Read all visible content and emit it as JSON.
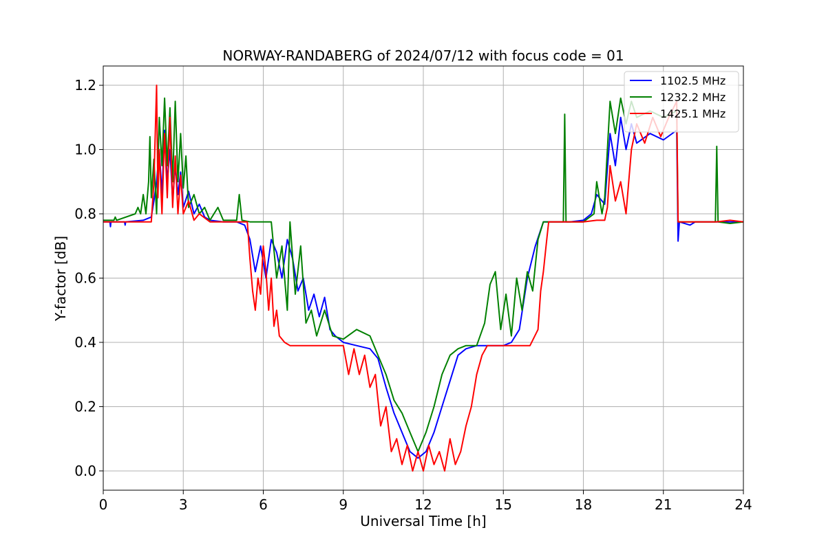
{
  "chart_data": {
    "type": "line",
    "title": "NORWAY-RANDABERG of 2024/07/12 with focus code = 01",
    "xlabel": "Universal Time [h]",
    "ylabel": "Y-factor [dB]",
    "xlim": [
      0,
      24
    ],
    "ylim": [
      -0.06,
      1.26
    ],
    "xticks": [
      0,
      3,
      6,
      9,
      12,
      15,
      18,
      21,
      24
    ],
    "xtick_labels": [
      "0",
      "3",
      "6",
      "9",
      "12",
      "15",
      "18",
      "21",
      "24"
    ],
    "yticks": [
      0.0,
      0.2,
      0.4,
      0.6,
      0.8,
      1.0,
      1.2
    ],
    "ytick_labels": [
      "0.0",
      "0.2",
      "0.4",
      "0.6",
      "0.8",
      "1.0",
      "1.2"
    ],
    "grid": true,
    "legend_position": "top-right",
    "series": [
      {
        "name": "1102.5 MHz",
        "color": "#0000ff",
        "points": [
          [
            0.0,
            0.775
          ],
          [
            0.25,
            0.775
          ],
          [
            0.27,
            0.76
          ],
          [
            0.29,
            0.775
          ],
          [
            0.8,
            0.775
          ],
          [
            0.82,
            0.765
          ],
          [
            0.84,
            0.775
          ],
          [
            1.5,
            0.78
          ],
          [
            1.8,
            0.79
          ],
          [
            1.9,
            0.84
          ],
          [
            2.0,
            0.9
          ],
          [
            2.1,
            1.0
          ],
          [
            2.2,
            0.86
          ],
          [
            2.3,
            1.06
          ],
          [
            2.4,
            0.9
          ],
          [
            2.5,
            1.0
          ],
          [
            2.6,
            0.84
          ],
          [
            2.7,
            0.95
          ],
          [
            2.8,
            0.86
          ],
          [
            2.9,
            0.93
          ],
          [
            3.0,
            0.82
          ],
          [
            3.2,
            0.87
          ],
          [
            3.4,
            0.8
          ],
          [
            3.6,
            0.83
          ],
          [
            3.8,
            0.79
          ],
          [
            4.0,
            0.78
          ],
          [
            4.5,
            0.775
          ],
          [
            5.0,
            0.775
          ],
          [
            5.3,
            0.765
          ],
          [
            5.5,
            0.72
          ],
          [
            5.7,
            0.62
          ],
          [
            5.9,
            0.7
          ],
          [
            6.1,
            0.6
          ],
          [
            6.3,
            0.72
          ],
          [
            6.5,
            0.68
          ],
          [
            6.7,
            0.6
          ],
          [
            6.9,
            0.72
          ],
          [
            7.1,
            0.66
          ],
          [
            7.3,
            0.56
          ],
          [
            7.5,
            0.6
          ],
          [
            7.7,
            0.5
          ],
          [
            7.9,
            0.55
          ],
          [
            8.1,
            0.48
          ],
          [
            8.3,
            0.54
          ],
          [
            8.5,
            0.44
          ],
          [
            8.7,
            0.42
          ],
          [
            9.0,
            0.4
          ],
          [
            9.5,
            0.39
          ],
          [
            10.0,
            0.38
          ],
          [
            10.3,
            0.35
          ],
          [
            10.6,
            0.26
          ],
          [
            10.9,
            0.18
          ],
          [
            11.2,
            0.12
          ],
          [
            11.5,
            0.06
          ],
          [
            11.8,
            0.04
          ],
          [
            12.1,
            0.06
          ],
          [
            12.4,
            0.12
          ],
          [
            12.7,
            0.2
          ],
          [
            13.0,
            0.28
          ],
          [
            13.3,
            0.36
          ],
          [
            13.6,
            0.38
          ],
          [
            14.0,
            0.39
          ],
          [
            14.5,
            0.39
          ],
          [
            15.0,
            0.39
          ],
          [
            15.3,
            0.4
          ],
          [
            15.6,
            0.44
          ],
          [
            15.9,
            0.6
          ],
          [
            16.2,
            0.7
          ],
          [
            16.5,
            0.775
          ],
          [
            17.0,
            0.775
          ],
          [
            17.5,
            0.775
          ],
          [
            18.0,
            0.78
          ],
          [
            18.3,
            0.8
          ],
          [
            18.5,
            0.86
          ],
          [
            18.8,
            0.83
          ],
          [
            19.0,
            1.05
          ],
          [
            19.2,
            0.95
          ],
          [
            19.4,
            1.1
          ],
          [
            19.6,
            1.0
          ],
          [
            19.8,
            1.08
          ],
          [
            20.0,
            1.02
          ],
          [
            20.5,
            1.05
          ],
          [
            21.0,
            1.03
          ],
          [
            21.5,
            1.06
          ],
          [
            21.55,
            0.715
          ],
          [
            21.6,
            0.775
          ],
          [
            22.0,
            0.765
          ],
          [
            22.2,
            0.775
          ],
          [
            23.0,
            0.775
          ],
          [
            24.0,
            0.775
          ]
        ]
      },
      {
        "name": "1232.2 MHz",
        "color": "#008000",
        "points": [
          [
            0.0,
            0.78
          ],
          [
            0.4,
            0.78
          ],
          [
            0.45,
            0.79
          ],
          [
            0.5,
            0.78
          ],
          [
            1.2,
            0.8
          ],
          [
            1.3,
            0.82
          ],
          [
            1.4,
            0.8
          ],
          [
            1.5,
            0.86
          ],
          [
            1.6,
            0.8
          ],
          [
            1.7,
            0.9
          ],
          [
            1.75,
            1.04
          ],
          [
            1.8,
            0.85
          ],
          [
            1.9,
            0.97
          ],
          [
            2.0,
            0.8
          ],
          [
            2.1,
            1.1
          ],
          [
            2.2,
            0.95
          ],
          [
            2.3,
            1.16
          ],
          [
            2.4,
            0.95
          ],
          [
            2.5,
            1.13
          ],
          [
            2.6,
            0.9
          ],
          [
            2.7,
            1.15
          ],
          [
            2.8,
            0.9
          ],
          [
            2.9,
            1.05
          ],
          [
            3.0,
            0.88
          ],
          [
            3.1,
            0.98
          ],
          [
            3.2,
            0.82
          ],
          [
            3.4,
            0.86
          ],
          [
            3.6,
            0.8
          ],
          [
            3.8,
            0.82
          ],
          [
            4.0,
            0.78
          ],
          [
            4.3,
            0.82
          ],
          [
            4.5,
            0.78
          ],
          [
            5.0,
            0.78
          ],
          [
            5.1,
            0.86
          ],
          [
            5.2,
            0.78
          ],
          [
            5.5,
            0.775
          ],
          [
            6.0,
            0.775
          ],
          [
            6.3,
            0.775
          ],
          [
            6.5,
            0.6
          ],
          [
            6.7,
            0.7
          ],
          [
            6.9,
            0.5
          ],
          [
            7.0,
            0.775
          ],
          [
            7.2,
            0.55
          ],
          [
            7.4,
            0.7
          ],
          [
            7.6,
            0.46
          ],
          [
            7.8,
            0.5
          ],
          [
            8.0,
            0.42
          ],
          [
            8.3,
            0.5
          ],
          [
            8.6,
            0.42
          ],
          [
            9.0,
            0.41
          ],
          [
            9.5,
            0.44
          ],
          [
            10.0,
            0.42
          ],
          [
            10.3,
            0.36
          ],
          [
            10.6,
            0.3
          ],
          [
            10.9,
            0.22
          ],
          [
            11.2,
            0.18
          ],
          [
            11.5,
            0.12
          ],
          [
            11.8,
            0.06
          ],
          [
            12.1,
            0.12
          ],
          [
            12.4,
            0.2
          ],
          [
            12.7,
            0.3
          ],
          [
            13.0,
            0.36
          ],
          [
            13.3,
            0.38
          ],
          [
            13.6,
            0.39
          ],
          [
            14.0,
            0.39
          ],
          [
            14.3,
            0.46
          ],
          [
            14.5,
            0.58
          ],
          [
            14.7,
            0.62
          ],
          [
            14.9,
            0.44
          ],
          [
            15.1,
            0.55
          ],
          [
            15.3,
            0.42
          ],
          [
            15.5,
            0.6
          ],
          [
            15.7,
            0.5
          ],
          [
            15.9,
            0.62
          ],
          [
            16.1,
            0.56
          ],
          [
            16.3,
            0.72
          ],
          [
            16.5,
            0.775
          ],
          [
            17.0,
            0.775
          ],
          [
            17.25,
            0.775
          ],
          [
            17.3,
            1.11
          ],
          [
            17.35,
            0.775
          ],
          [
            18.0,
            0.775
          ],
          [
            18.4,
            0.8
          ],
          [
            18.5,
            0.9
          ],
          [
            18.7,
            0.8
          ],
          [
            18.8,
            0.85
          ],
          [
            18.9,
            1.0
          ],
          [
            19.0,
            1.15
          ],
          [
            19.2,
            1.05
          ],
          [
            19.4,
            1.16
          ],
          [
            19.6,
            1.08
          ],
          [
            19.8,
            1.15
          ],
          [
            20.0,
            1.1
          ],
          [
            20.5,
            1.12
          ],
          [
            21.0,
            1.1
          ],
          [
            21.5,
            1.12
          ],
          [
            21.55,
            0.775
          ],
          [
            22.0,
            0.775
          ],
          [
            22.95,
            0.775
          ],
          [
            23.0,
            1.01
          ],
          [
            23.05,
            0.775
          ],
          [
            23.5,
            0.77
          ],
          [
            24.0,
            0.775
          ]
        ]
      },
      {
        "name": "1425.1 MHz",
        "color": "#ff0000",
        "points": [
          [
            0.0,
            0.775
          ],
          [
            1.5,
            0.775
          ],
          [
            1.8,
            0.775
          ],
          [
            1.9,
            0.9
          ],
          [
            2.0,
            1.2
          ],
          [
            2.05,
            0.85
          ],
          [
            2.1,
            1.0
          ],
          [
            2.2,
            0.8
          ],
          [
            2.3,
            1.05
          ],
          [
            2.4,
            0.85
          ],
          [
            2.5,
            1.1
          ],
          [
            2.6,
            0.82
          ],
          [
            2.7,
            0.98
          ],
          [
            2.8,
            0.8
          ],
          [
            2.9,
            0.92
          ],
          [
            3.0,
            0.8
          ],
          [
            3.2,
            0.84
          ],
          [
            3.4,
            0.78
          ],
          [
            3.6,
            0.8
          ],
          [
            4.0,
            0.775
          ],
          [
            5.0,
            0.775
          ],
          [
            5.4,
            0.775
          ],
          [
            5.5,
            0.66
          ],
          [
            5.6,
            0.56
          ],
          [
            5.7,
            0.5
          ],
          [
            5.8,
            0.6
          ],
          [
            5.9,
            0.55
          ],
          [
            6.0,
            0.7
          ],
          [
            6.1,
            0.62
          ],
          [
            6.2,
            0.5
          ],
          [
            6.3,
            0.6
          ],
          [
            6.4,
            0.45
          ],
          [
            6.5,
            0.5
          ],
          [
            6.6,
            0.42
          ],
          [
            6.8,
            0.4
          ],
          [
            7.0,
            0.39
          ],
          [
            7.5,
            0.39
          ],
          [
            8.0,
            0.39
          ],
          [
            8.5,
            0.39
          ],
          [
            9.0,
            0.39
          ],
          [
            9.2,
            0.3
          ],
          [
            9.4,
            0.38
          ],
          [
            9.6,
            0.3
          ],
          [
            9.8,
            0.36
          ],
          [
            10.0,
            0.26
          ],
          [
            10.2,
            0.3
          ],
          [
            10.4,
            0.14
          ],
          [
            10.6,
            0.2
          ],
          [
            10.8,
            0.06
          ],
          [
            11.0,
            0.1
          ],
          [
            11.2,
            0.02
          ],
          [
            11.4,
            0.08
          ],
          [
            11.6,
            0.0
          ],
          [
            11.8,
            0.06
          ],
          [
            12.0,
            0.0
          ],
          [
            12.2,
            0.08
          ],
          [
            12.4,
            0.02
          ],
          [
            12.6,
            0.06
          ],
          [
            12.8,
            0.0
          ],
          [
            13.0,
            0.1
          ],
          [
            13.2,
            0.02
          ],
          [
            13.4,
            0.06
          ],
          [
            13.6,
            0.14
          ],
          [
            13.8,
            0.2
          ],
          [
            14.0,
            0.3
          ],
          [
            14.2,
            0.36
          ],
          [
            14.4,
            0.39
          ],
          [
            15.0,
            0.39
          ],
          [
            15.5,
            0.39
          ],
          [
            16.0,
            0.39
          ],
          [
            16.3,
            0.44
          ],
          [
            16.4,
            0.56
          ],
          [
            16.5,
            0.62
          ],
          [
            16.6,
            0.7
          ],
          [
            16.7,
            0.775
          ],
          [
            17.0,
            0.775
          ],
          [
            17.5,
            0.775
          ],
          [
            18.0,
            0.775
          ],
          [
            18.5,
            0.78
          ],
          [
            18.8,
            0.78
          ],
          [
            18.9,
            0.82
          ],
          [
            19.0,
            0.95
          ],
          [
            19.2,
            0.84
          ],
          [
            19.4,
            0.9
          ],
          [
            19.6,
            0.8
          ],
          [
            19.8,
            1.0
          ],
          [
            20.0,
            1.08
          ],
          [
            20.3,
            1.02
          ],
          [
            20.6,
            1.1
          ],
          [
            20.9,
            1.04
          ],
          [
            21.2,
            1.1
          ],
          [
            21.5,
            1.15
          ],
          [
            21.55,
            0.775
          ],
          [
            22.0,
            0.775
          ],
          [
            23.0,
            0.775
          ],
          [
            23.5,
            0.78
          ],
          [
            24.0,
            0.775
          ]
        ]
      }
    ]
  }
}
